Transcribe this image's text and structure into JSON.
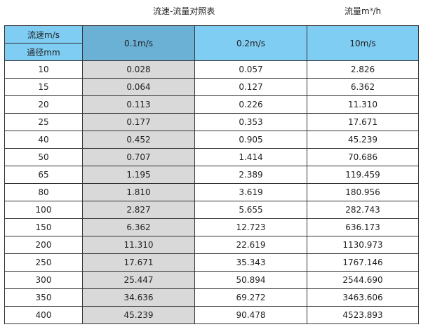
{
  "title": "流速-流量对照表",
  "unit": "流量m³/h",
  "colors": {
    "header": "#7fcdf3",
    "header_highlight": "#6bb1d6",
    "highlight_column": "#d9d9d9"
  },
  "header": {
    "speed_label": "流速m/s",
    "diameter_label": "通径mm",
    "columns": [
      "0.1m/s",
      "0.2m/s",
      "10m/s"
    ]
  },
  "rows": [
    [
      "10",
      "0.028",
      "0.057",
      "2.826"
    ],
    [
      "15",
      "0.064",
      "0.127",
      "6.362"
    ],
    [
      "20",
      "0.113",
      "0.226",
      "11.310"
    ],
    [
      "25",
      "0.177",
      "0.353",
      "17.671"
    ],
    [
      "40",
      "0.452",
      "0.905",
      "45.239"
    ],
    [
      "50",
      "0.707",
      "1.414",
      "70.686"
    ],
    [
      "65",
      "1.195",
      "2.389",
      "119.459"
    ],
    [
      "80",
      "1.810",
      "3.619",
      "180.956"
    ],
    [
      "100",
      "2.827",
      "5.655",
      "282.743"
    ],
    [
      "150",
      "6.362",
      "12.723",
      "636.173"
    ],
    [
      "200",
      "11.310",
      "22.619",
      "1130.973"
    ],
    [
      "250",
      "17.671",
      "35.343",
      "1767.146"
    ],
    [
      "300",
      "25.447",
      "50.894",
      "2544.690"
    ],
    [
      "350",
      "34.636",
      "69.272",
      "3463.606"
    ],
    [
      "400",
      "45.239",
      "90.478",
      "4523.893"
    ]
  ]
}
